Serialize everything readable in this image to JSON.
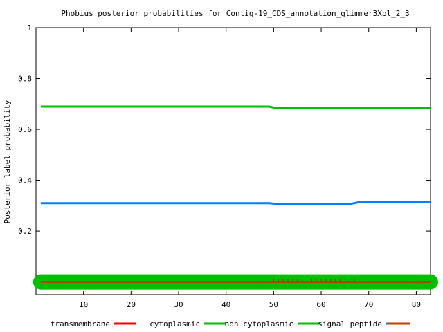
{
  "chart_data": {
    "type": "line",
    "title": "Phobius posterior probabilities for Contig-19_CDS_annotation_glimmer3Xpl_2_3",
    "xlabel": "",
    "ylabel": "Posterior label probability",
    "xlim": [
      0,
      83
    ],
    "ylim": [
      -0.05,
      1
    ],
    "x_ticks": [
      10,
      20,
      30,
      40,
      50,
      60,
      70,
      80
    ],
    "y_ticks": [
      0.2,
      0.4,
      0.6,
      0.8,
      1
    ],
    "y_tick_labels": [
      "0.2",
      "0.4",
      "0.6",
      "0.8",
      "1"
    ],
    "grid": false,
    "legend_position": "bottom",
    "series": [
      {
        "name": "transmembrane",
        "color": "#ff0000",
        "points": [
          [
            1,
            0
          ],
          [
            83,
            0
          ]
        ]
      },
      {
        "name": "cytoplasmic",
        "color": "#00c000",
        "points": [
          [
            1,
            0
          ],
          [
            83,
            0
          ]
        ]
      },
      {
        "name": "non cytoplasmic",
        "color": "#00c000",
        "points": [
          [
            1,
            0.69
          ],
          [
            49,
            0.69
          ],
          [
            50,
            0.686
          ],
          [
            51,
            0.685
          ],
          [
            66,
            0.685
          ],
          [
            67,
            0.685
          ],
          [
            83,
            0.684
          ]
        ]
      },
      {
        "name": "signal peptide",
        "color": "#0080ff",
        "points": [
          [
            1,
            0.31
          ],
          [
            49,
            0.31
          ],
          [
            50,
            0.308
          ],
          [
            51,
            0.307
          ],
          [
            66,
            0.307
          ],
          [
            67,
            0.31
          ],
          [
            68,
            0.314
          ],
          [
            83,
            0.315
          ]
        ]
      },
      {
        "name": "",
        "color": "#c04000",
        "points": [
          [
            1,
            0
          ],
          [
            83,
            0
          ]
        ]
      }
    ],
    "legend_entries": [
      "transmembrane",
      "cytoplasmic",
      "non cytoplasmic",
      "signal peptide"
    ]
  }
}
